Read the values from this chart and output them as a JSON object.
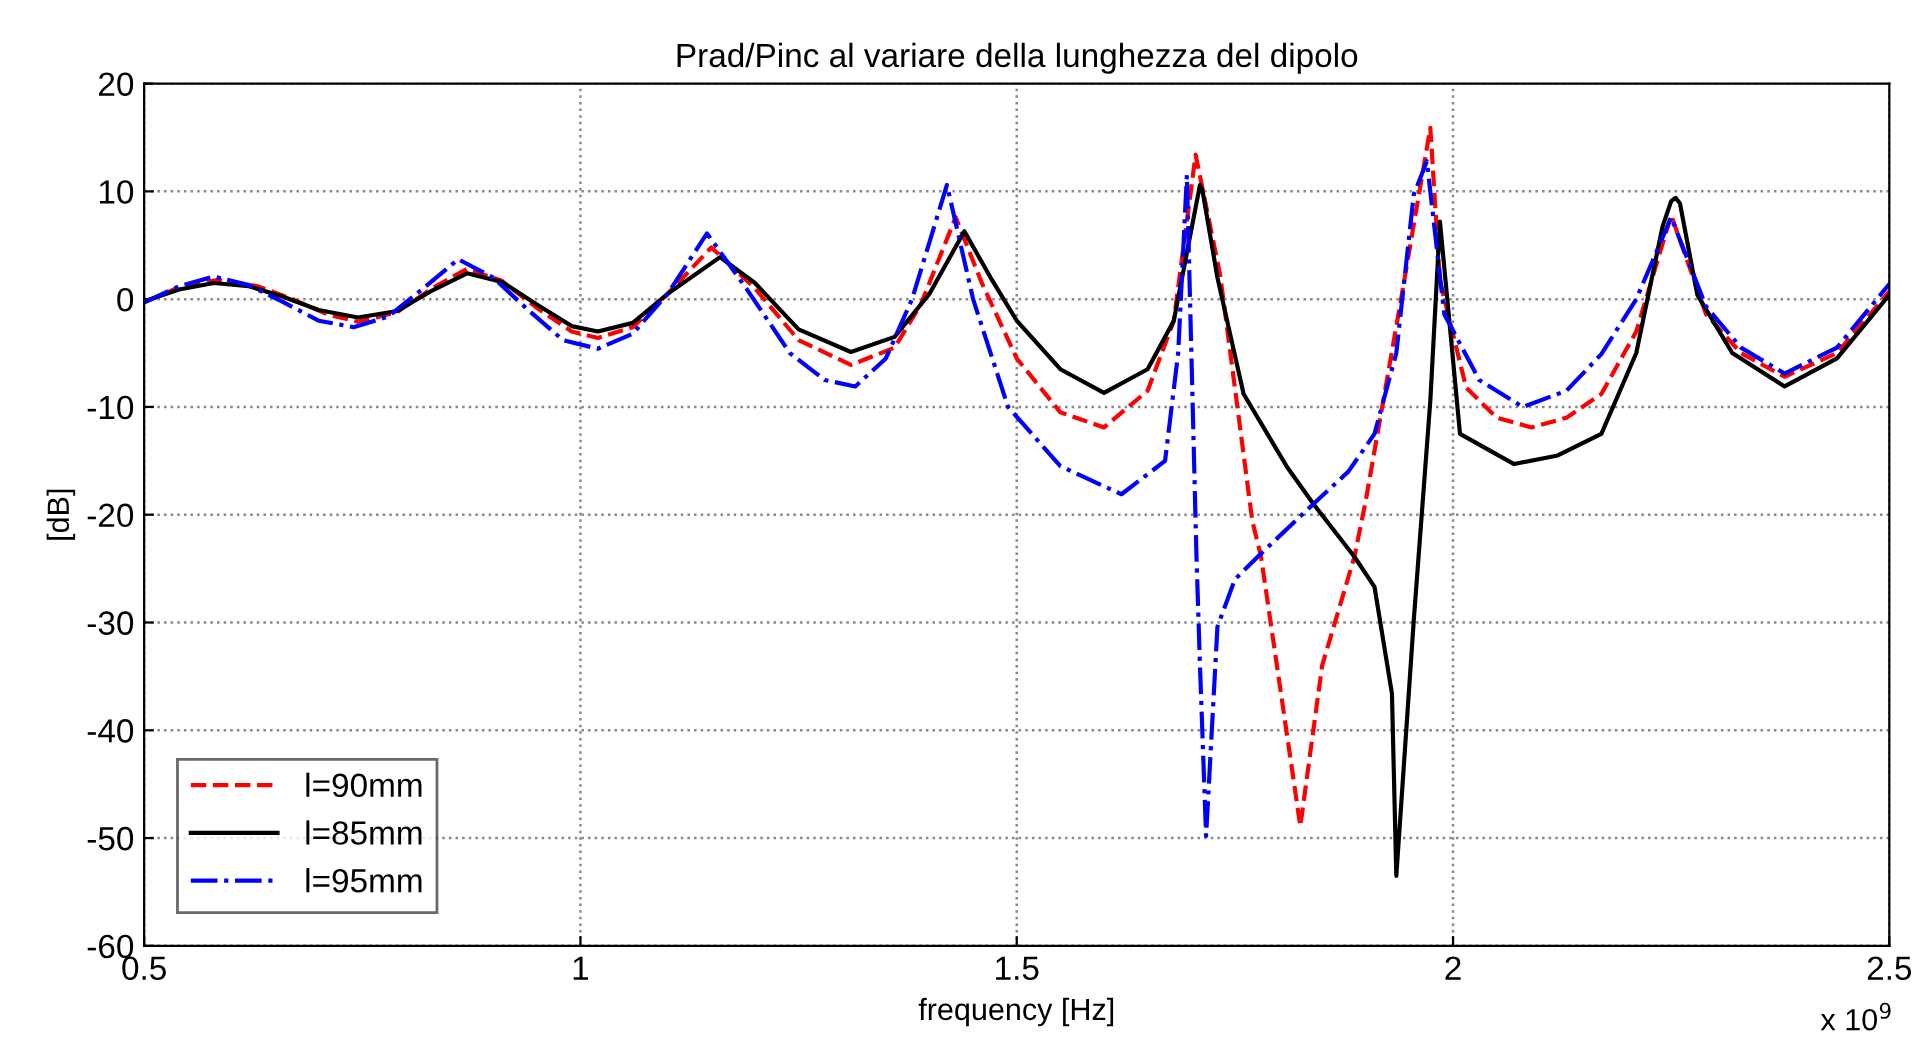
{
  "chart_data": {
    "type": "line",
    "title": "Prad/Pinc al variare della lunghezza del dipolo",
    "xlabel": "frequency [Hz]",
    "ylabel": "[dB]",
    "annotations": [
      "x 10$^{9}$"
    ],
    "xlim": [
      0.5,
      2.5
    ],
    "xticks": [
      0.5,
      1,
      1.5,
      2,
      2.5
    ],
    "ylim": [
      -60,
      20
    ],
    "yticks": [
      -60,
      -50,
      -40,
      -30,
      -20,
      -10,
      0,
      10,
      20
    ],
    "grid": true,
    "legend": "bottom left",
    "series": [
      {
        "name": "l=90mm",
        "color": "#ff0000",
        "line_style": "dashed",
        "x": [
          0.5,
          0.54,
          0.585,
          0.63,
          0.67,
          0.71,
          0.745,
          0.79,
          0.83,
          0.87,
          0.91,
          0.95,
          0.99,
          1.02,
          1.06,
          1.1,
          1.15,
          1.2,
          1.25,
          1.31,
          1.36,
          1.39,
          1.43,
          1.46,
          1.5,
          1.55,
          1.6,
          1.65,
          1.68,
          1.705,
          1.733,
          1.77,
          1.78,
          1.825,
          1.85,
          1.887,
          1.9,
          1.94,
          1.974,
          1.985,
          2.015,
          2.05,
          2.09,
          2.13,
          2.17,
          2.21,
          2.25,
          2.29,
          2.33,
          2.38,
          2.44,
          2.5
        ],
        "values": [
          -0.3,
          1.1,
          1.8,
          1.2,
          0,
          -1.4,
          -2.1,
          -1.2,
          1,
          2.8,
          1.7,
          -0.8,
          -3,
          -3.6,
          -2.6,
          0.5,
          4.8,
          1,
          -3.8,
          -6.1,
          -4.5,
          -0.5,
          7.6,
          1.5,
          -5.5,
          -10.5,
          -11.9,
          -8.5,
          -2,
          13.4,
          2.3,
          -20.6,
          -23.9,
          -48.9,
          -34,
          -23.9,
          -18.7,
          -0.2,
          15.9,
          1.7,
          -8.2,
          -11,
          -11.9,
          -11,
          -8.8,
          -3,
          7.8,
          -1.4,
          -5,
          -7.2,
          -5,
          0.7
        ]
      },
      {
        "name": "l=85mm",
        "color": "#000000",
        "line_style": "solid",
        "x": [
          0.5,
          0.54,
          0.58,
          0.62,
          0.66,
          0.7,
          0.745,
          0.79,
          0.83,
          0.87,
          0.91,
          0.95,
          0.99,
          1.02,
          1.06,
          1.1,
          1.16,
          1.2,
          1.25,
          1.31,
          1.36,
          1.4,
          1.44,
          1.47,
          1.5,
          1.55,
          1.6,
          1.65,
          1.68,
          1.71,
          1.713,
          1.73,
          1.76,
          1.81,
          1.84,
          1.887,
          1.91,
          1.93,
          1.935,
          1.955,
          1.974,
          1.985,
          2.008,
          2.07,
          2.12,
          2.17,
          2.21,
          2.24,
          2.25,
          2.255,
          2.26,
          2.28,
          2.32,
          2.38,
          2.44,
          2.5
        ],
        "values": [
          -0.2,
          0.9,
          1.5,
          1.2,
          0.2,
          -1,
          -1.7,
          -1.1,
          0.8,
          2.4,
          1.6,
          -0.5,
          -2.5,
          -3,
          -2.2,
          0.5,
          3.9,
          1.5,
          -2.8,
          -4.9,
          -3.5,
          0.5,
          6.3,
          2,
          -2,
          -6.5,
          -8.7,
          -6.5,
          -2,
          10.6,
          10,
          2,
          -8.8,
          -15.6,
          -19,
          -23.9,
          -26.7,
          -36.6,
          -53.5,
          -29.8,
          -9.4,
          7.2,
          -12.5,
          -15.3,
          -14.5,
          -12.5,
          -5,
          6.7,
          9.1,
          9.4,
          8.9,
          0.4,
          -5,
          -8.1,
          -5.5,
          0.4
        ]
      },
      {
        "name": "l=95mm",
        "color": "#0000ff",
        "line_style": "dashdot",
        "x": [
          0.5,
          0.54,
          0.58,
          0.62,
          0.66,
          0.7,
          0.74,
          0.78,
          0.82,
          0.86,
          0.9,
          0.94,
          0.98,
          1.02,
          1.06,
          1.1,
          1.145,
          1.19,
          1.24,
          1.28,
          1.315,
          1.35,
          1.38,
          1.42,
          1.45,
          1.49,
          1.55,
          1.62,
          1.67,
          1.685,
          1.695,
          1.706,
          1.71,
          1.717,
          1.73,
          1.75,
          1.78,
          1.84,
          1.88,
          1.91,
          1.935,
          1.955,
          1.97,
          1.99,
          2.03,
          2.08,
          2.13,
          2.17,
          2.21,
          2.25,
          2.29,
          2.33,
          2.38,
          2.44,
          2.5
        ],
        "values": [
          -0.3,
          1.2,
          2.1,
          1.3,
          -0.3,
          -2,
          -2.6,
          -1.6,
          1,
          3.7,
          2,
          -1,
          -3.8,
          -4.6,
          -3.2,
          0.5,
          6.1,
          1,
          -5,
          -7.5,
          -8.1,
          -5.5,
          0,
          10.6,
          0,
          -10,
          -15.5,
          -18.1,
          -15,
          -5,
          11.5,
          -23.9,
          -34,
          -49.8,
          -30.4,
          -26,
          -23.6,
          -19,
          -16,
          -12.5,
          -5,
          9.7,
          12.8,
          -1.4,
          -7.5,
          -10,
          -8.5,
          -5.1,
          0,
          7.6,
          -0.7,
          -4.5,
          -6.9,
          -4.5,
          1.4
        ]
      }
    ]
  }
}
